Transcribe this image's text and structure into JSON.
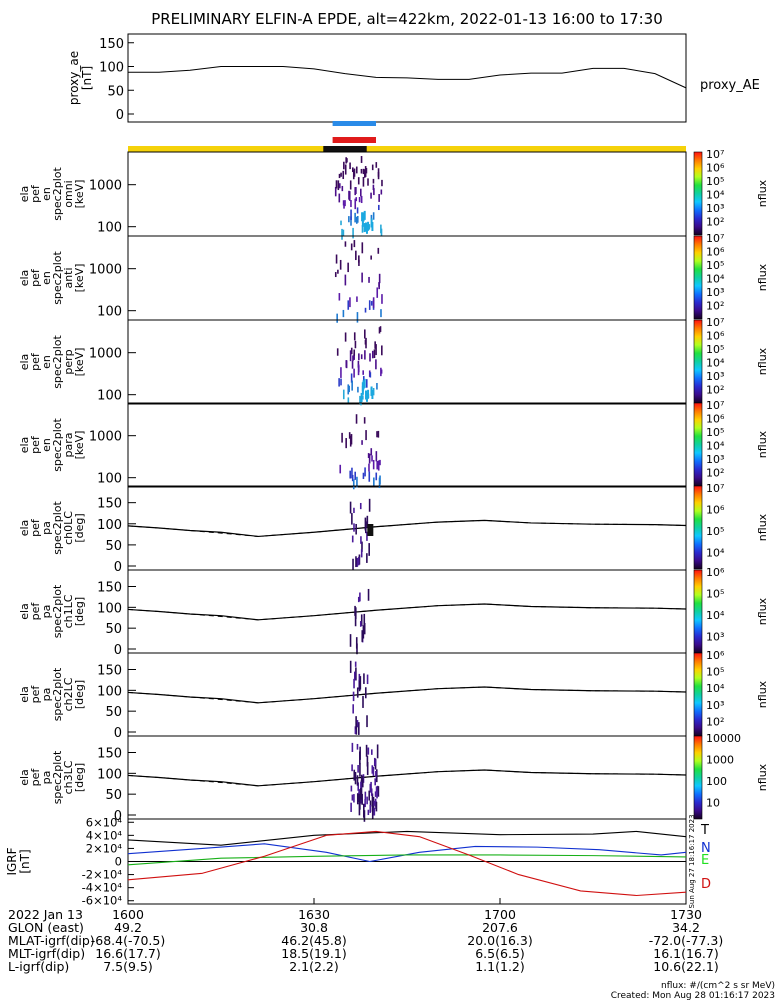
{
  "title": "PRELIMINARY ELFIN-A EPDE, alt=422km, 2022-01-13 16:00 to 17:30",
  "proxy_ae": {
    "ylabel": [
      "proxy_ae",
      "[nT]"
    ],
    "yticks": [
      "150",
      "100",
      "50",
      "0"
    ],
    "legend": "proxy_AE"
  },
  "spec_panels": [
    {
      "ylabel": [
        "ela",
        "pef",
        "en",
        "spec2plot",
        "omni",
        "[keV]"
      ],
      "yticks": [
        "1000",
        "100"
      ]
    },
    {
      "ylabel": [
        "ela",
        "pef",
        "en",
        "spec2plot",
        "anti",
        "[keV]"
      ],
      "yticks": [
        "1000",
        "100"
      ]
    },
    {
      "ylabel": [
        "ela",
        "pef",
        "en",
        "spec2plot",
        "perp",
        "[keV]"
      ],
      "yticks": [
        "1000",
        "100"
      ]
    },
    {
      "ylabel": [
        "ela",
        "pef",
        "en",
        "spec2plot",
        "para",
        "[keV]"
      ],
      "yticks": [
        "1000",
        "100"
      ]
    }
  ],
  "pa_panels": [
    {
      "ylabel": [
        "ela",
        "pef",
        "pa",
        "spec2plot",
        "ch0LC",
        "[deg]"
      ],
      "yticks": [
        "150",
        "100",
        "50",
        "0"
      ]
    },
    {
      "ylabel": [
        "ela",
        "pef",
        "pa",
        "spec2plot",
        "ch1LC",
        "[deg]"
      ],
      "yticks": [
        "150",
        "100",
        "50",
        "0"
      ]
    },
    {
      "ylabel": [
        "ela",
        "pef",
        "pa",
        "spec2plot",
        "ch2LC",
        "[deg]"
      ],
      "yticks": [
        "150",
        "100",
        "50",
        "0"
      ]
    },
    {
      "ylabel": [
        "ela",
        "pef",
        "pa",
        "spec2plot",
        "ch3LC",
        "[deg]"
      ],
      "yticks": [
        "150",
        "100",
        "50",
        "0"
      ]
    }
  ],
  "colorbars": [
    {
      "label": "nflux",
      "ticks": [
        "10⁷",
        "10⁶",
        "10⁵",
        "10⁴",
        "10³",
        "10²"
      ]
    },
    {
      "label": "nflux",
      "ticks": [
        "10⁷",
        "10⁶",
        "10⁵",
        "10⁴",
        "10³",
        "10²"
      ]
    },
    {
      "label": "nflux",
      "ticks": [
        "10⁷",
        "10⁶",
        "10⁵",
        "10⁴",
        "10³",
        "10²"
      ]
    },
    {
      "label": "nflux",
      "ticks": [
        "10⁷",
        "10⁶",
        "10⁵",
        "10⁴",
        "10³",
        "10²"
      ]
    },
    {
      "label": "nflux",
      "ticks": [
        "10⁷",
        "10⁶",
        "10⁵",
        "10⁴"
      ]
    },
    {
      "label": "nflux",
      "ticks": [
        "10⁶",
        "10⁵",
        "10⁴",
        "10³"
      ]
    },
    {
      "label": "nflux",
      "ticks": [
        "10⁶",
        "10⁵",
        "10⁴",
        "10³",
        "10²"
      ]
    },
    {
      "label": "nflux",
      "ticks": [
        "10000",
        "1000",
        "100",
        "10"
      ]
    }
  ],
  "igrf": {
    "ylabel": [
      "IGRF",
      "[nT]"
    ],
    "yticks": [
      "6×10⁴",
      "4×10⁴",
      "2×10⁴",
      "0",
      "-2×10⁴",
      "-4×10⁴",
      "-6×10⁴"
    ],
    "legend": [
      "T",
      "N",
      "E",
      "D"
    ],
    "stamp": "Sun Aug 27 18:16:17 2023"
  },
  "footer": {
    "rows": [
      {
        "label": "2022 Jan 13",
        "values": [
          "1600",
          "1630",
          "1700",
          "1730"
        ]
      },
      {
        "label": "GLON (east)",
        "values": [
          "49.2",
          "30.8",
          "207.6",
          "34.2"
        ]
      },
      {
        "label": "MLAT-igrf(dip)",
        "values": [
          "-68.4(-70.5)",
          "46.2(45.8)",
          "20.0(16.3)",
          "-72.0(-77.3)"
        ]
      },
      {
        "label": "MLT-igrf(dip)",
        "values": [
          "16.6(17.7)",
          "18.5(19.1)",
          "6.5(6.5)",
          "16.1(16.7)"
        ]
      },
      {
        "label": "L-igrf(dip)",
        "values": [
          "7.5(9.5)",
          "2.1(2.2)",
          "1.1(1.2)",
          "10.6(22.1)"
        ]
      }
    ],
    "units": "nflux: #/(cm^2 s sr MeV)",
    "created": "Created: Mon Aug 28 01:16:17 2023"
  },
  "colors": {
    "ram_bar": "#2a8be8",
    "red_bar": "#e01b1b",
    "sci_bar": "#f5d20a",
    "dark_bar": "#111111",
    "trace_T": "#000000",
    "trace_N": "#1030d0",
    "trace_E": "#18b018",
    "trace_D": "#d01010",
    "legend_E": "#20e020"
  },
  "chart_data": [
    {
      "type": "line",
      "name": "proxy_ae",
      "x": [
        "16:00",
        "16:05",
        "16:10",
        "16:15",
        "16:20",
        "16:25",
        "16:30",
        "16:35",
        "16:40",
        "16:45",
        "16:50",
        "16:55",
        "17:00",
        "17:05",
        "17:10",
        "17:15",
        "17:20",
        "17:25",
        "17:30"
      ],
      "series": [
        {
          "name": "proxy_AE",
          "values": [
            88,
            88,
            92,
            100,
            100,
            100,
            95,
            85,
            77,
            76,
            73,
            73,
            82,
            86,
            86,
            96,
            96,
            85,
            55
          ]
        }
      ],
      "ylim": [
        0,
        160
      ]
    },
    {
      "type": "heatmap",
      "name": "energy spectrograms (omni, anti, perp, para)",
      "yscale": "log",
      "ylim_keV": [
        60,
        6000
      ],
      "clim_nflux": [
        100,
        10000000
      ],
      "active_interval": [
        "16:39",
        "16:46"
      ]
    },
    {
      "type": "heatmap",
      "name": "pitch-angle spectrograms (ch0LC..ch3LC)",
      "ylim_deg": [
        0,
        180
      ],
      "loss_cone_solid": [
        [
          0,
          95
        ],
        [
          10,
          90
        ],
        [
          20,
          84
        ],
        [
          30,
          80
        ],
        [
          42,
          70
        ],
        [
          60,
          80
        ],
        [
          80,
          93
        ],
        [
          100,
          104
        ],
        [
          115,
          108
        ],
        [
          130,
          102
        ],
        [
          150,
          99
        ],
        [
          170,
          98
        ],
        [
          180,
          96
        ]
      ],
      "anti_loss_cone_dashed": [
        [
          0,
          85
        ],
        [
          10,
          90
        ],
        [
          20,
          96
        ],
        [
          30,
          102
        ],
        [
          42,
          110
        ],
        [
          60,
          100
        ],
        [
          80,
          87
        ],
        [
          100,
          76
        ],
        [
          115,
          72
        ],
        [
          130,
          78
        ],
        [
          150,
          81
        ],
        [
          170,
          82
        ],
        [
          180,
          84
        ]
      ]
    },
    {
      "type": "line",
      "name": "IGRF",
      "xlim_min": [
        0,
        90
      ],
      "ylim": [
        -60000,
        60000
      ],
      "series": [
        {
          "name": "T",
          "points": [
            [
              0,
              33000
            ],
            [
              15,
              25000
            ],
            [
              30,
              40000
            ],
            [
              45,
              46000
            ],
            [
              60,
              41000
            ],
            [
              75,
              42000
            ],
            [
              82,
              46000
            ],
            [
              90,
              38000
            ]
          ]
        },
        {
          "name": "N",
          "points": [
            [
              0,
              12000
            ],
            [
              12,
              20000
            ],
            [
              22,
              27000
            ],
            [
              32,
              14000
            ],
            [
              39,
              0
            ],
            [
              47,
              14000
            ],
            [
              56,
              23000
            ],
            [
              66,
              22000
            ],
            [
              76,
              18000
            ],
            [
              86,
              10000
            ],
            [
              90,
              14000
            ]
          ]
        },
        {
          "name": "E",
          "points": [
            [
              0,
              -5000
            ],
            [
              15,
              5000
            ],
            [
              30,
              8000
            ],
            [
              45,
              10000
            ],
            [
              60,
              10000
            ],
            [
              75,
              9000
            ],
            [
              90,
              7000
            ]
          ]
        },
        {
          "name": "D",
          "points": [
            [
              0,
              -28000
            ],
            [
              12,
              -18000
            ],
            [
              22,
              8000
            ],
            [
              32,
              40000
            ],
            [
              40,
              46000
            ],
            [
              47,
              38000
            ],
            [
              55,
              10000
            ],
            [
              63,
              -20000
            ],
            [
              73,
              -45000
            ],
            [
              82,
              -52000
            ],
            [
              90,
              -47000
            ]
          ]
        }
      ]
    }
  ]
}
